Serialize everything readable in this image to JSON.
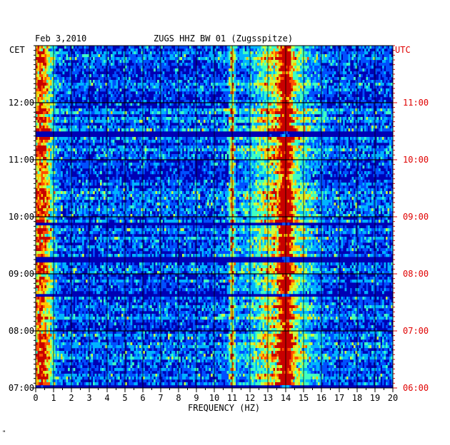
{
  "chart_data": {
    "type": "heatmap",
    "title": "ZUGS HHZ BW 01 (Zugsspitze)",
    "date_label": "Feb 3,2010",
    "left_axis_title": "CET",
    "right_axis_title": "UTC",
    "xlabel": "FREQUENCY (HZ)",
    "xlim": [
      0,
      20
    ],
    "x_ticks": [
      "0",
      "1",
      "2",
      "3",
      "4",
      "5",
      "6",
      "7",
      "8",
      "9",
      "10",
      "11",
      "12",
      "13",
      "14",
      "15",
      "16",
      "17",
      "18",
      "19",
      "20"
    ],
    "y_ticks_left": [
      "12:00",
      "11:00",
      "10:00",
      "09:00",
      "08:00",
      "07:00"
    ],
    "y_ticks_right": [
      "11:00",
      "10:00",
      "09:00",
      "08:00",
      "07:00",
      "06:00"
    ],
    "time_range_cet": [
      "07:00",
      "13:00"
    ],
    "grid": true,
    "colormap": [
      "#000080",
      "#0000c8",
      "#0050ff",
      "#00b4ff",
      "#40ffc0",
      "#c8ff40",
      "#ffc800",
      "#ff5000",
      "#c80000"
    ],
    "energy_bands_hz": [
      {
        "center": 0.3,
        "width": 0.6,
        "intensity": 0.85
      },
      {
        "center": 11.0,
        "width": 0.15,
        "intensity": 0.6
      },
      {
        "center": 14.0,
        "width": 0.3,
        "intensity": 0.9
      },
      {
        "center": 13.7,
        "width": 1.6,
        "intensity": 0.55
      }
    ],
    "quiet_rows_cet": [
      "09:52",
      "09:15",
      "08:37",
      "07:01",
      "11:27"
    ]
  },
  "footer_mark": "\""
}
